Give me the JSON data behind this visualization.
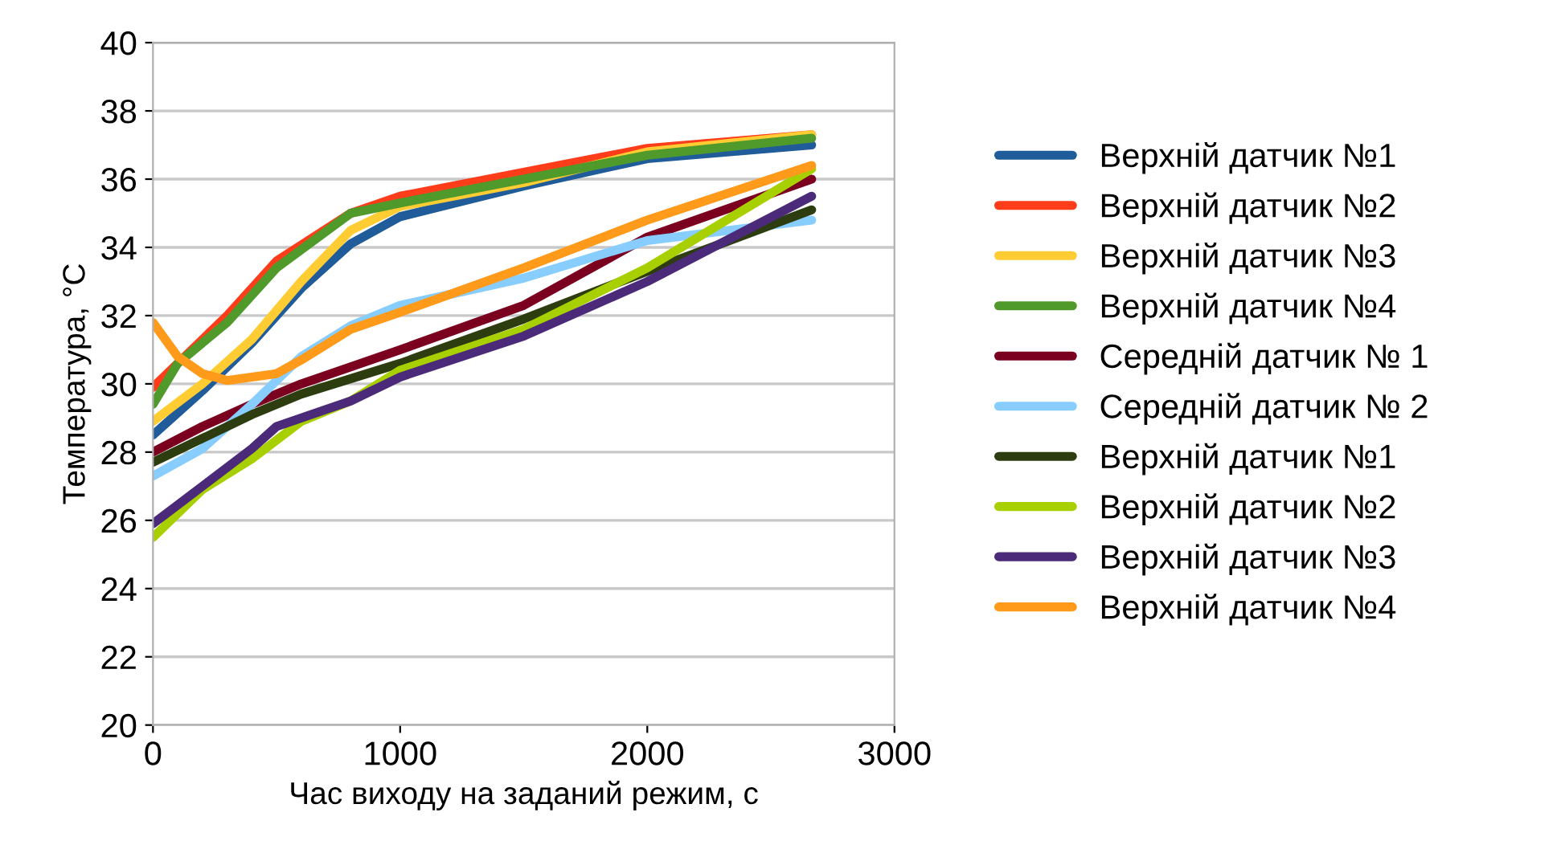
{
  "chart_data": {
    "type": "line",
    "xlabel": "Час виходу на заданий режим, с",
    "ylabel": "Температура, °С",
    "xlim": [
      0,
      3000
    ],
    "xticks": [
      0,
      1000,
      2000,
      3000
    ],
    "ylim": [
      20,
      40
    ],
    "yticks": [
      20,
      22,
      24,
      26,
      28,
      30,
      32,
      34,
      36,
      38,
      40
    ],
    "grid": "y",
    "legend": "right",
    "marker": "none",
    "line_style": "solid",
    "series": [
      {
        "name": "Верхній датчик №1",
        "color": "#1f5c99",
        "x": [
          0,
          200,
          400,
          600,
          800,
          1000,
          1500,
          2000,
          2665
        ],
        "values": [
          28.5,
          29.8,
          31.2,
          32.8,
          34.1,
          34.9,
          35.8,
          36.6,
          37.0
        ]
      },
      {
        "name": "Верхній датчик №2",
        "color": "#ff3d1a",
        "x": [
          0,
          300,
          500,
          800,
          1000,
          1500,
          2000,
          2665
        ],
        "values": [
          29.9,
          32.0,
          33.6,
          35.0,
          35.5,
          36.2,
          36.9,
          37.3
        ]
      },
      {
        "name": "Верхній датчик №3",
        "color": "#ffcc33",
        "x": [
          0,
          200,
          400,
          600,
          800,
          1000,
          1500,
          2000,
          2665
        ],
        "values": [
          28.9,
          30.0,
          31.3,
          33.0,
          34.5,
          35.2,
          35.9,
          36.8,
          37.3
        ]
      },
      {
        "name": "Верхній датчик №4",
        "color": "#4f9a2a",
        "x": [
          0,
          100,
          300,
          500,
          800,
          1000,
          1500,
          2000,
          2665
        ],
        "values": [
          29.4,
          30.6,
          31.8,
          33.4,
          35.0,
          35.3,
          36.0,
          36.7,
          37.2
        ]
      },
      {
        "name": "Середній датчик № 1",
        "color": "#7b0020",
        "x": [
          0,
          200,
          400,
          600,
          1000,
          1500,
          2000,
          2665
        ],
        "values": [
          28.0,
          28.75,
          29.4,
          30.0,
          31.0,
          32.3,
          34.3,
          36.0
        ]
      },
      {
        "name": "Середній датчик № 2",
        "color": "#87ceff",
        "x": [
          0,
          200,
          400,
          600,
          800,
          1000,
          1500,
          2000,
          2665
        ],
        "values": [
          27.3,
          28.1,
          29.4,
          30.8,
          31.7,
          32.3,
          33.1,
          34.2,
          34.8
        ]
      },
      {
        "name": "Верхній датчик №1",
        "color": "#2d3d10",
        "x": [
          0,
          200,
          400,
          600,
          1000,
          1500,
          2000,
          2665
        ],
        "values": [
          27.7,
          28.4,
          29.1,
          29.7,
          30.6,
          31.9,
          33.3,
          35.1
        ]
      },
      {
        "name": "Верхній датчик №2",
        "color": "#a8d000",
        "x": [
          0,
          200,
          400,
          600,
          800,
          1000,
          1500,
          2000,
          2665
        ],
        "values": [
          25.5,
          26.9,
          27.8,
          28.9,
          29.5,
          30.4,
          31.6,
          33.4,
          36.3
        ]
      },
      {
        "name": "Верхній датчик №3",
        "color": "#4b2a7a",
        "x": [
          0,
          200,
          400,
          500,
          800,
          1000,
          1500,
          2000,
          2665
        ],
        "values": [
          25.9,
          27.0,
          28.1,
          28.75,
          29.5,
          30.2,
          31.4,
          33.0,
          35.5
        ]
      },
      {
        "name": "Верхній датчик №4",
        "color": "#ff9a1a",
        "x": [
          0,
          100,
          200,
          300,
          400,
          500,
          600,
          800,
          1000,
          1500,
          2000,
          2665
        ],
        "values": [
          31.8,
          30.8,
          30.3,
          30.1,
          30.2,
          30.3,
          30.7,
          31.6,
          32.1,
          33.4,
          34.8,
          36.4
        ]
      }
    ]
  }
}
